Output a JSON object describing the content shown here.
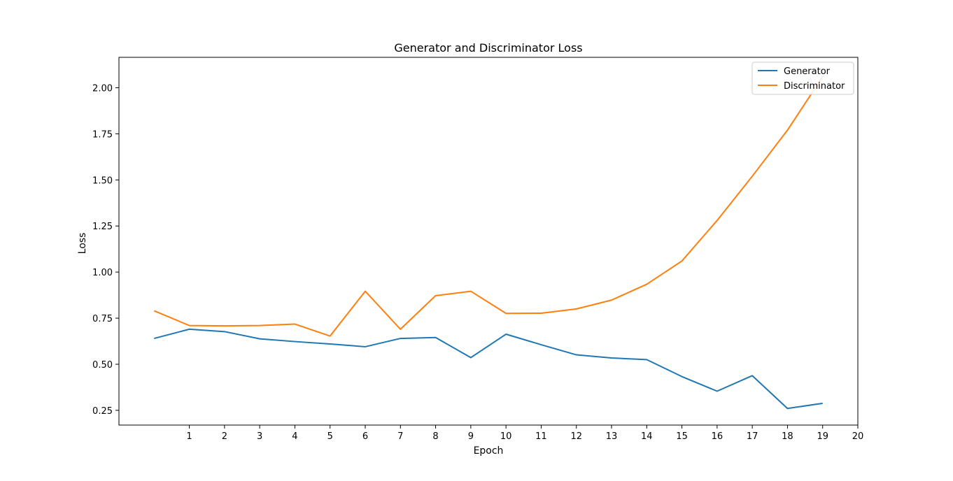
{
  "chart_data": {
    "type": "line",
    "title": "Generator and Discriminator Loss",
    "xlabel": "Epoch",
    "ylabel": "Loss",
    "x": [
      0,
      1,
      2,
      3,
      4,
      5,
      6,
      7,
      8,
      9,
      10,
      11,
      12,
      13,
      14,
      15,
      16,
      17,
      18,
      19
    ],
    "xlim": [
      -1,
      20
    ],
    "ylim": [
      0.17,
      2.165
    ],
    "xticks": [
      1,
      2,
      3,
      4,
      5,
      6,
      7,
      8,
      9,
      10,
      11,
      12,
      13,
      14,
      15,
      16,
      17,
      18,
      19,
      20
    ],
    "yticks": [
      0.25,
      0.5,
      0.75,
      1.0,
      1.25,
      1.5,
      1.75,
      2.0
    ],
    "ytick_labels": [
      "0.25",
      "0.50",
      "0.75",
      "1.00",
      "1.25",
      "1.50",
      "1.75",
      "2.00"
    ],
    "grid": false,
    "legend_position": "top-right",
    "series": [
      {
        "name": "Generator",
        "color": "#1f77b4",
        "values": [
          0.64,
          0.69,
          0.677,
          0.638,
          0.623,
          0.61,
          0.595,
          0.64,
          0.645,
          0.536,
          0.663,
          0.606,
          0.551,
          0.534,
          0.525,
          0.433,
          0.354,
          0.438,
          0.26,
          0.288
        ]
      },
      {
        "name": "Discriminator",
        "color": "#ff7f0e",
        "values": [
          0.79,
          0.71,
          0.708,
          0.71,
          0.718,
          0.653,
          0.896,
          0.69,
          0.872,
          0.896,
          0.776,
          0.777,
          0.8,
          0.848,
          0.934,
          1.06,
          1.28,
          1.52,
          1.77,
          2.06
        ]
      }
    ]
  }
}
